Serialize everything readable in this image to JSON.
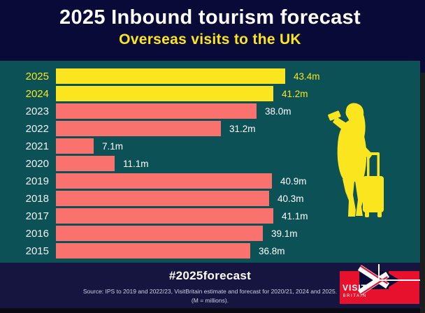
{
  "header": {
    "title": "2025 Inbound tourism forecast",
    "subtitle": "Overseas visits to the UK"
  },
  "chart_data": {
    "type": "bar",
    "orientation": "horizontal",
    "title": "2025 Inbound tourism forecast",
    "subtitle": "Overseas visits to the UK",
    "unit": "millions of visits (m)",
    "categories": [
      "2025",
      "2024",
      "2023",
      "2022",
      "2021",
      "2020",
      "2019",
      "2018",
      "2017",
      "2016",
      "2015"
    ],
    "values": [
      43.4,
      41.2,
      38.0,
      31.2,
      7.1,
      11.1,
      40.9,
      40.3,
      41.1,
      39.1,
      36.8
    ],
    "value_labels": [
      "43.4m",
      "41.2m",
      "38.0m",
      "31.2m",
      "7.1m",
      "11.1m",
      "40.9m",
      "40.3m",
      "41.1m",
      "39.1m",
      "36.8m"
    ],
    "highlight_categories": [
      "2025",
      "2024"
    ],
    "xlim": [
      0,
      43.4
    ],
    "grid": false,
    "legend": false
  },
  "footer": {
    "hashtag": "#2025forecast",
    "source_line1": "Source: IPS to 2019 and 2022/23, VisitBritain estimate and forecast for 2020/21, 2024 and 2025.",
    "source_line2": "(M = millions)."
  },
  "logo": {
    "visit": "VISIT",
    "britain": "BRITAIN"
  },
  "icons": {
    "traveler": "traveler-with-suitcase-silhouette",
    "flag": "union-jack-flag-fragment"
  },
  "colors": {
    "background_navy": "#0a0a38",
    "footer_navy": "#15153f",
    "panel_teal": "#0b5156",
    "bar_highlight_yellow": "#fbe51e",
    "bar_coral": "#f9726d",
    "logo_red": "#e8112d",
    "text_white": "#ffffff"
  }
}
